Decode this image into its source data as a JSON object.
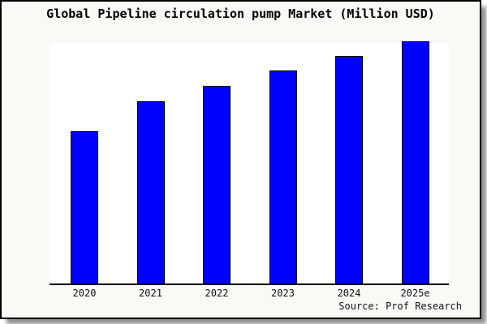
{
  "chart": {
    "title": "Global Pipeline circulation pump Market (Million USD)",
    "source": "Source: Prof Research"
  },
  "chart_data": {
    "type": "bar",
    "title": "Global Pipeline circulation pump Market (Million USD)",
    "categories": [
      "2020",
      "2021",
      "2022",
      "2023",
      "2024",
      "2025e"
    ],
    "values": [
      62.9,
      75.3,
      81.6,
      88.0,
      94.0,
      100.0
    ],
    "values_note": "relative index estimated from bar heights; no y-axis scale shown in chart",
    "xlabel": "",
    "ylabel": "",
    "ylim": [
      0,
      100
    ],
    "grid": false,
    "legend": false,
    "source": "Source: Prof Research",
    "colors": {
      "bar_fill": "#0000ff",
      "bar_edge": "#000000",
      "figure_background": "#f9f9f6",
      "plot_background": "#ffffff",
      "axis_line": "#000000",
      "text": "#000000"
    }
  }
}
